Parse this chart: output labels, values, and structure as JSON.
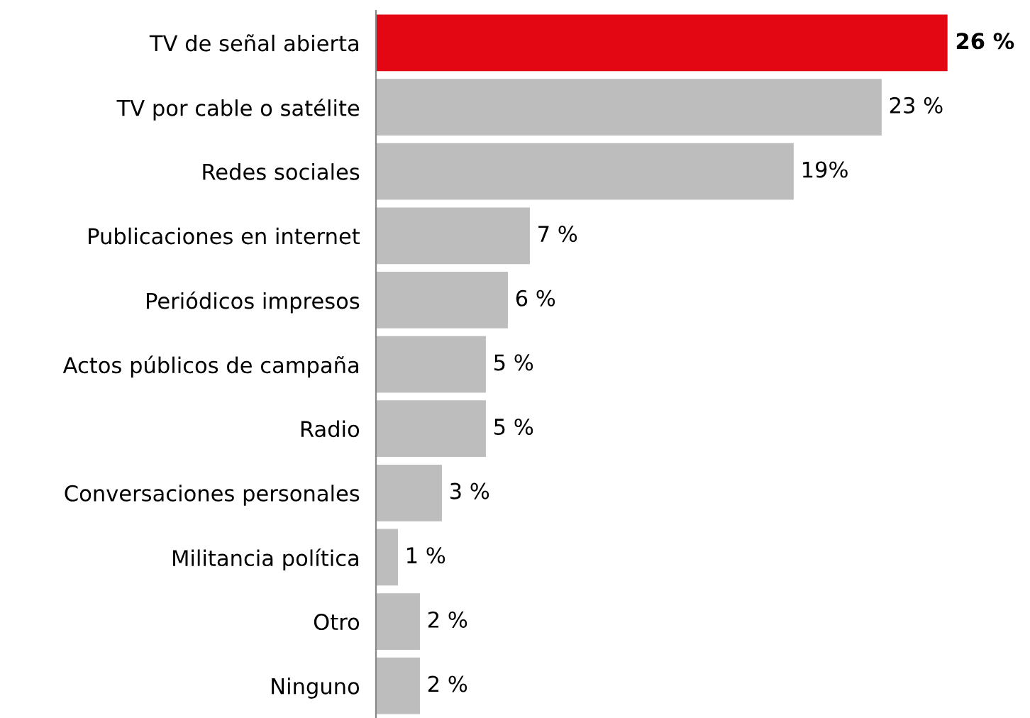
{
  "chart_data": {
    "type": "bar",
    "orientation": "horizontal",
    "categories": [
      "TV de señal abierta",
      "TV por cable o satélite",
      "Redes sociales",
      "Publicaciones en internet",
      "Periódicos impresos",
      "Actos públicos de campaña",
      "Radio",
      "Conversaciones personales",
      "Militancia política",
      "Otro",
      "Ninguno"
    ],
    "values": [
      26,
      23,
      19,
      7,
      6,
      5,
      5,
      3,
      1,
      2,
      2
    ],
    "colors": [
      "#e30613",
      "#bdbdbd",
      "#bdbdbd",
      "#bdbdbd",
      "#bdbdbd",
      "#bdbdbd",
      "#bdbdbd",
      "#bdbdbd",
      "#bdbdbd",
      "#bdbdbd",
      "#bdbdbd"
    ],
    "value_labels": [
      "26 %",
      "23 %",
      "19%",
      "7 %",
      "6 %",
      "5 %",
      "5 %",
      "3 %",
      "1 %",
      "2 %",
      "2 %"
    ],
    "grid": false,
    "legend": false
  }
}
